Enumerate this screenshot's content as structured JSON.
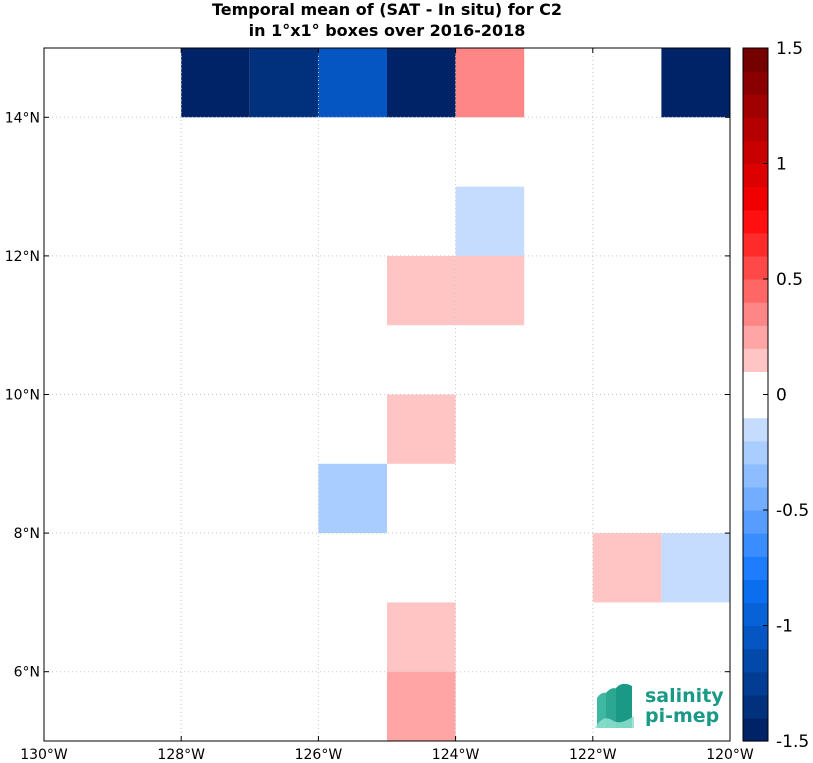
{
  "chart_data": {
    "type": "heatmap",
    "title": "Temporal mean of (SAT - In situ) for C2",
    "subtitle": "in 1°x1° boxes over 2016-2018",
    "xlabel": "",
    "ylabel": "",
    "xlim": [
      -130,
      -120
    ],
    "ylim": [
      5,
      15
    ],
    "grid": true,
    "x_ticks": [
      {
        "value": -130,
        "label": "130°W"
      },
      {
        "value": -128,
        "label": "128°W"
      },
      {
        "value": -126,
        "label": "126°W"
      },
      {
        "value": -124,
        "label": "124°W"
      },
      {
        "value": -122,
        "label": "122°W"
      },
      {
        "value": -120,
        "label": "120°W"
      }
    ],
    "y_ticks": [
      {
        "value": 6,
        "label": "6°N"
      },
      {
        "value": 8,
        "label": "8°N"
      },
      {
        "value": 10,
        "label": "10°N"
      },
      {
        "value": 12,
        "label": "12°N"
      },
      {
        "value": 14,
        "label": "14°N"
      }
    ],
    "colorbar": {
      "min": -1.5,
      "max": 1.5,
      "step": 0.1,
      "ticks": [
        {
          "value": 1.5,
          "label": "1.5"
        },
        {
          "value": 1,
          "label": "1"
        },
        {
          "value": 0.5,
          "label": "0.5"
        },
        {
          "value": 0,
          "label": "0"
        },
        {
          "value": -0.5,
          "label": "-0.5"
        },
        {
          "value": -1,
          "label": "-1"
        },
        {
          "value": -1.5,
          "label": "-1.5"
        }
      ]
    },
    "cells": [
      {
        "lon": -128,
        "lat": 14,
        "value": -1.45
      },
      {
        "lon": -127,
        "lat": 14,
        "value": -1.35
      },
      {
        "lon": -126,
        "lat": 14,
        "value": -1.05
      },
      {
        "lon": -125,
        "lat": 14,
        "value": -1.45
      },
      {
        "lon": -124,
        "lat": 14,
        "value": 0.35
      },
      {
        "lon": -121,
        "lat": 14,
        "value": -1.45
      },
      {
        "lon": -124,
        "lat": 12,
        "value": -0.15
      },
      {
        "lon": -125,
        "lat": 11,
        "value": 0.15
      },
      {
        "lon": -124,
        "lat": 11,
        "value": 0.15
      },
      {
        "lon": -125,
        "lat": 9,
        "value": 0.15
      },
      {
        "lon": -126,
        "lat": 8,
        "value": -0.25
      },
      {
        "lon": -122,
        "lat": 7,
        "value": 0.15
      },
      {
        "lon": -121,
        "lat": 7,
        "value": -0.15
      },
      {
        "lon": -125,
        "lat": 6,
        "value": 0.15
      },
      {
        "lon": -125,
        "lat": 5,
        "value": 0.25
      }
    ]
  },
  "colormap": {
    "neg": [
      "#e1ecff",
      "#c6dcff",
      "#aacdff",
      "#8ebdff",
      "#72adff",
      "#569dff",
      "#3a8dff",
      "#1e7dff",
      "#0a6eee",
      "#0762d8",
      "#0556c2",
      "#0349aa",
      "#023d93",
      "#01307c",
      "#002266"
    ],
    "zero": "#ffffff",
    "pos": [
      "#ffe1e1",
      "#ffc4c4",
      "#ffa5a5",
      "#ff8686",
      "#ff6767",
      "#ff4848",
      "#ff2b2b",
      "#ff0f0f",
      "#f00000",
      "#dc0000",
      "#c80000",
      "#b40000",
      "#a00000",
      "#8a0000",
      "#740000"
    ],
    "grid": "#c8c8c8",
    "axis": "#000000"
  },
  "logo": {
    "line1": "salinity",
    "line2": "pi-mep"
  }
}
